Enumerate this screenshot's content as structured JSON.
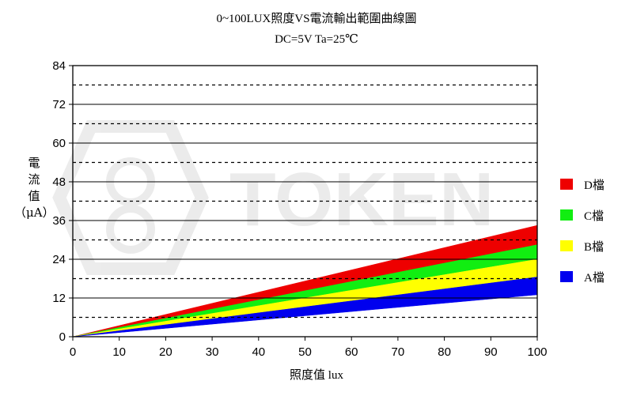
{
  "chart_data": {
    "type": "area",
    "title": "0~100LUX照度VS電流輸出範圍曲線圖",
    "subtitle": "DC=5V   Ta=25℃",
    "ylabel_lines": [
      "電",
      "流",
      "值",
      "（μA）"
    ],
    "xlabel": "照度值   lux",
    "watermark": "TOKEN",
    "x": [
      0,
      100
    ],
    "xlim": [
      0,
      100
    ],
    "ylim": [
      0,
      84
    ],
    "xticks": [
      0,
      10,
      20,
      30,
      40,
      50,
      60,
      70,
      80,
      90,
      100
    ],
    "yticks": [
      0,
      12,
      24,
      36,
      48,
      60,
      72,
      84
    ],
    "solid_gridlines": [
      12,
      24,
      36,
      48,
      60,
      72
    ],
    "dashed_gridlines": [
      6,
      18,
      30,
      42,
      54,
      66,
      78
    ],
    "legend_position": "right",
    "series": [
      {
        "name": "D檔",
        "color": "#ee0000",
        "lower": [
          0,
          28.5
        ],
        "upper": [
          0,
          34.5
        ]
      },
      {
        "name": "C檔",
        "color": "#11ee11",
        "lower": [
          0,
          24
        ],
        "upper": [
          0,
          28.5
        ]
      },
      {
        "name": "B檔",
        "color": "#ffff00",
        "lower": [
          0,
          18.5
        ],
        "upper": [
          0,
          24
        ]
      },
      {
        "name": "A檔",
        "color": "#0000ee",
        "lower": [
          0,
          13
        ],
        "upper": [
          0,
          18.5
        ]
      }
    ]
  }
}
